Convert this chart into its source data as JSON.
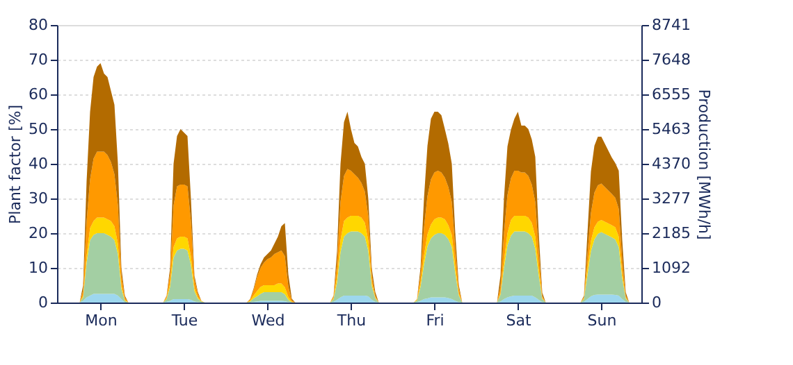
{
  "chart_data": {
    "type": "area",
    "stacked": true,
    "ylabel": "Plant factor [%]",
    "y2label": "Production [MWh/h]",
    "categories": [
      null,
      null,
      null,
      null,
      null,
      null,
      null,
      null,
      null,
      null,
      null,
      null,
      "Mon",
      null,
      null,
      null,
      null,
      null,
      null,
      null,
      null,
      null,
      null,
      null,
      null,
      null,
      null,
      null,
      null,
      null,
      null,
      null,
      null,
      null,
      null,
      null,
      "Tue",
      null,
      null,
      null,
      null,
      null,
      null,
      null,
      null,
      null,
      null,
      null,
      null,
      null,
      null,
      null,
      null,
      null,
      null,
      null,
      null,
      null,
      null,
      null,
      "Wed",
      null,
      null,
      null,
      null,
      null,
      null,
      null,
      null,
      null,
      null,
      null,
      null,
      null,
      null,
      null,
      null,
      null,
      null,
      null,
      null,
      null,
      null,
      null,
      "Thu",
      null,
      null,
      null,
      null,
      null,
      null,
      null,
      null,
      null,
      null,
      null,
      null,
      null,
      null,
      null,
      null,
      null,
      null,
      null,
      null,
      null,
      null,
      null,
      "Fri",
      null,
      null,
      null,
      null,
      null,
      null,
      null,
      null,
      null,
      null,
      null,
      null,
      null,
      null,
      null,
      null,
      null,
      null,
      null,
      null,
      null,
      null,
      null,
      "Sat",
      null,
      null,
      null,
      null,
      null,
      null,
      null,
      null,
      null,
      null,
      null,
      null,
      null,
      null,
      null,
      null,
      null,
      null,
      null,
      null,
      null,
      null,
      null,
      "Sun",
      null,
      null,
      null,
      null,
      null,
      null,
      null,
      null,
      null,
      null,
      null
    ],
    "series": [
      {
        "color": "#9dd7ee",
        "values": [
          0,
          0,
          0,
          0,
          0,
          0,
          0,
          0.5,
          1.5,
          2,
          2.5,
          2.5,
          2.5,
          2.5,
          2.5,
          2.5,
          2.5,
          2,
          1,
          0,
          0,
          0,
          0,
          0,
          0,
          0,
          0,
          0,
          0,
          0,
          0,
          0.2,
          0.5,
          1,
          1,
          1,
          1,
          1,
          0.8,
          0.3,
          0.1,
          0,
          0,
          0,
          0,
          0,
          0,
          0,
          0,
          0,
          0,
          0,
          0,
          0,
          0,
          0,
          0.2,
          0.3,
          0.5,
          0.5,
          0.5,
          0.5,
          0.5,
          0.5,
          0.5,
          0.4,
          0.1,
          0,
          0,
          0,
          0,
          0,
          0,
          0,
          0,
          0,
          0,
          0,
          0,
          0.2,
          0.8,
          1.5,
          2,
          2,
          2,
          2,
          2,
          2,
          2,
          1.8,
          0.8,
          0.2,
          0,
          0,
          0,
          0,
          0,
          0,
          0,
          0,
          0,
          0,
          0,
          0.1,
          0.5,
          1,
          1.2,
          1.5,
          1.5,
          1.5,
          1.5,
          1.5,
          1.3,
          1,
          0.5,
          0.1,
          0,
          0,
          0,
          0,
          0,
          0,
          0,
          0,
          0,
          0,
          0,
          0.3,
          1,
          1.5,
          1.8,
          2,
          2,
          2,
          2,
          2,
          2,
          1.5,
          0.8,
          0.1,
          0,
          0,
          0,
          0,
          0,
          0,
          0,
          0,
          0,
          0,
          0,
          0.2,
          1,
          1.8,
          2.2,
          2.3,
          2.3,
          2.3,
          2.3,
          2.3,
          2.2,
          2,
          1,
          0.2,
          0,
          0,
          0,
          0
        ]
      },
      {
        "color": "#a3cfa3",
        "values": [
          0,
          0,
          0,
          0,
          0,
          0,
          0,
          1,
          10,
          16,
          17,
          17.5,
          17.5,
          17.5,
          17,
          16.5,
          15.5,
          12,
          3,
          0.5,
          0,
          0,
          0,
          0,
          0,
          0,
          0,
          0,
          0,
          0,
          0,
          0.8,
          4,
          12,
          14,
          14.5,
          14.5,
          14,
          10,
          3,
          1,
          0.3,
          0,
          0,
          0,
          0,
          0,
          0,
          0,
          0,
          0,
          0,
          0,
          0,
          0,
          0.3,
          1,
          1.5,
          2,
          2.5,
          2.5,
          2.5,
          2.5,
          2.5,
          2.5,
          2,
          0.7,
          0.1,
          0,
          0,
          0,
          0,
          0,
          0,
          0,
          0,
          0,
          0,
          0,
          0.8,
          5,
          13,
          17,
          18,
          18.5,
          18.5,
          18.5,
          18,
          17,
          13,
          4,
          1,
          0,
          0,
          0,
          0,
          0,
          0,
          0,
          0,
          0,
          0,
          0,
          0.5,
          4,
          10,
          15,
          17,
          18,
          18.5,
          18.5,
          18,
          17,
          15,
          8,
          2,
          0,
          0,
          0,
          0,
          0,
          0,
          0,
          0,
          0,
          0,
          0,
          2,
          9,
          15,
          17.5,
          18.5,
          18.5,
          18.5,
          18.5,
          18,
          17,
          14,
          7,
          1,
          0,
          0,
          0,
          0,
          0,
          0,
          0,
          0,
          0,
          0,
          0,
          0.8,
          7,
          13,
          16,
          17.5,
          18,
          17.5,
          17,
          16.5,
          16,
          14,
          6,
          1,
          0,
          0,
          0,
          0
        ]
      },
      {
        "color": "#ffd700",
        "values": [
          0,
          0,
          0,
          0,
          0,
          0,
          0,
          0.5,
          2,
          3.5,
          4,
          4.5,
          4.5,
          4.5,
          4.5,
          4.5,
          4,
          3,
          1,
          0.3,
          0,
          0,
          0,
          0,
          0,
          0,
          0,
          0,
          0,
          0,
          0,
          0.3,
          1,
          3,
          3.5,
          3.5,
          3.5,
          3.5,
          2.5,
          1,
          0.4,
          0.1,
          0,
          0,
          0,
          0,
          0,
          0,
          0,
          0,
          0,
          0,
          0,
          0,
          0,
          0.2,
          0.8,
          1.5,
          2,
          2,
          2,
          2,
          2,
          2.5,
          2.5,
          2,
          0.8,
          0.1,
          0,
          0,
          0,
          0,
          0,
          0,
          0,
          0,
          0,
          0,
          0,
          0.3,
          1.5,
          3.5,
          4.5,
          4.5,
          4.5,
          4.5,
          4.5,
          4.5,
          4,
          3,
          1,
          0.3,
          0,
          0,
          0,
          0,
          0,
          0,
          0,
          0,
          0,
          0,
          0,
          0.2,
          1,
          2.5,
          3.5,
          4,
          4.5,
          4.5,
          4.5,
          4.5,
          4,
          3.5,
          2,
          0.5,
          0,
          0,
          0,
          0,
          0,
          0,
          0,
          0,
          0,
          0,
          0,
          0.5,
          2,
          3.5,
          4.5,
          4.5,
          4.5,
          4.5,
          4.5,
          4.5,
          4,
          3.5,
          2,
          0.3,
          0,
          0,
          0,
          0,
          0,
          0,
          0,
          0,
          0,
          0,
          0,
          0.3,
          2,
          3,
          3.5,
          3.5,
          3.5,
          3.5,
          3.5,
          3.5,
          3.5,
          3,
          1.5,
          0.3,
          0,
          0,
          0,
          0
        ]
      },
      {
        "color": "#ff9900",
        "values": [
          0,
          0,
          0,
          0,
          0,
          0,
          0,
          1.5,
          10,
          14,
          18,
          19,
          19,
          19,
          18.5,
          17,
          15,
          11,
          3,
          0.7,
          0,
          0,
          0,
          0,
          0,
          0,
          0,
          0,
          0,
          0,
          0,
          0.5,
          3,
          12,
          15,
          15,
          15,
          15,
          10,
          2.5,
          1,
          0.1,
          0,
          0,
          0,
          0,
          0,
          0,
          0,
          0,
          0,
          0,
          0,
          0,
          0,
          0.4,
          1.5,
          4,
          5.5,
          6.5,
          7.5,
          8,
          9,
          9,
          9.5,
          9,
          3,
          0.4,
          0,
          0,
          0,
          0,
          0,
          0,
          0,
          0,
          0,
          0,
          0,
          0.5,
          4,
          11,
          13,
          14,
          13,
          12,
          11,
          10,
          9,
          7,
          2,
          0.5,
          0,
          0,
          0,
          0,
          0,
          0,
          0,
          0,
          0,
          0,
          0,
          0.2,
          2.5,
          8,
          11,
          13,
          13.5,
          13.5,
          13,
          12,
          11,
          9.5,
          5,
          1.5,
          0,
          0,
          0,
          0,
          0,
          0,
          0,
          0,
          0,
          0,
          0,
          2,
          8,
          11,
          12,
          13,
          13,
          12.5,
          12.5,
          12,
          11,
          10,
          5,
          0.5,
          0,
          0,
          0,
          0,
          0,
          0,
          0,
          0,
          0,
          0,
          0,
          0.3,
          4,
          8,
          10,
          10.5,
          10.5,
          10,
          9.5,
          9,
          8.5,
          8,
          4,
          0.5,
          0,
          0,
          0,
          0
        ]
      },
      {
        "color": "#b36b00",
        "values": [
          0,
          0,
          0,
          0,
          0,
          0,
          0,
          1.5,
          11.5,
          19.5,
          23.5,
          24.5,
          25.5,
          22.5,
          22.5,
          20.5,
          20,
          12,
          2,
          0.5,
          0,
          0,
          0,
          0,
          0,
          0,
          0,
          0,
          0,
          0,
          0,
          0.2,
          1.5,
          12,
          14.5,
          16,
          15,
          14.5,
          6.5,
          1,
          0.5,
          0,
          0,
          0,
          0,
          0,
          0,
          0,
          0,
          0,
          0,
          0,
          0,
          0,
          0,
          0.1,
          0.5,
          0.7,
          1,
          1.5,
          1.5,
          2,
          3,
          4.5,
          7,
          9.5,
          3.5,
          0.5,
          0,
          0,
          0,
          0,
          0,
          0,
          0,
          0,
          0,
          0,
          0,
          0.2,
          3.5,
          11,
          15.5,
          16.5,
          12,
          9,
          9,
          7.5,
          8,
          5,
          2,
          1,
          0,
          0,
          0,
          0,
          0,
          0,
          0,
          0,
          0,
          0,
          0,
          0,
          2,
          8.5,
          14.5,
          17.5,
          17.5,
          17,
          16.5,
          14,
          12.5,
          11,
          4.5,
          1,
          0,
          0,
          0,
          0,
          0,
          0,
          0,
          0,
          0,
          0,
          0,
          3,
          10,
          14,
          14,
          15,
          17,
          13.5,
          13.5,
          13.5,
          13,
          13,
          5,
          1,
          0,
          0,
          0,
          0,
          0,
          0,
          0,
          0,
          0,
          0,
          0,
          0.4,
          6,
          12,
          13.5,
          14,
          13.5,
          12.5,
          11.5,
          10.5,
          10,
          11,
          5.5,
          1,
          0,
          0,
          0,
          0
        ]
      }
    ],
    "ylim": [
      0,
      80
    ],
    "yticks": [
      0,
      10,
      20,
      30,
      40,
      50,
      60,
      70,
      80
    ],
    "y2lim": [
      0,
      8741
    ],
    "y2ticks": [
      0,
      1092,
      2185,
      3277,
      4370,
      5463,
      6555,
      7648,
      8741
    ],
    "grid": "y",
    "legend": false
  }
}
